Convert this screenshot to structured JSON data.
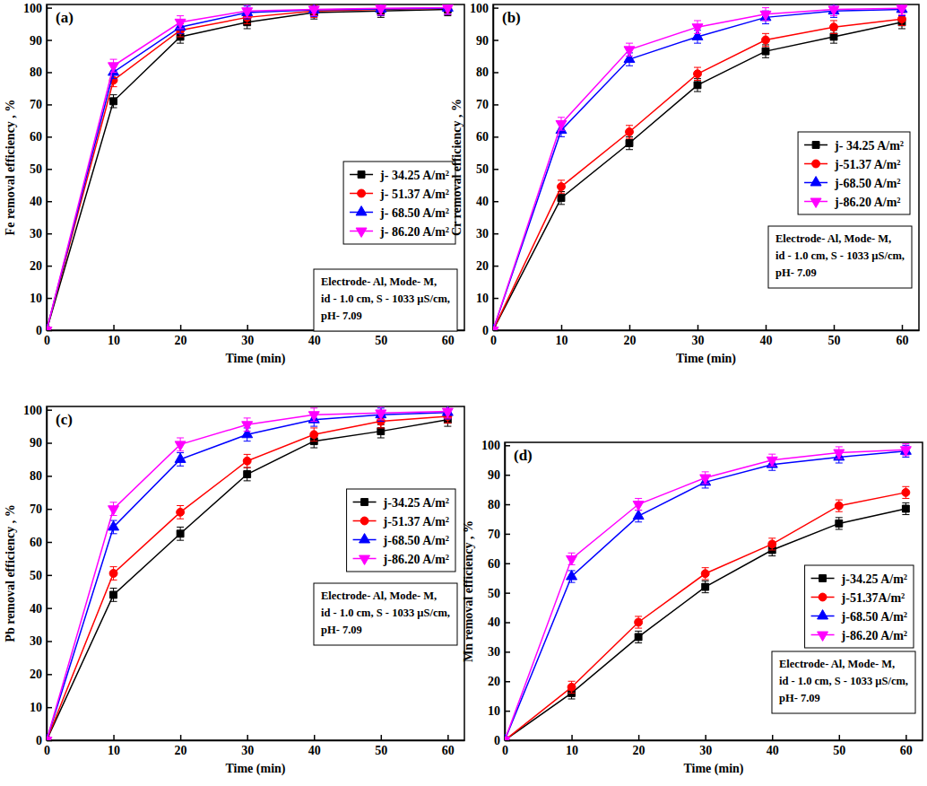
{
  "chart_data": [
    {
      "type": "line",
      "title": "(a)",
      "x_label": "Time (min)",
      "y_label": "Fe removal efficiency , %",
      "x": [
        0,
        10,
        20,
        30,
        40,
        50,
        60
      ],
      "xlim": [
        0,
        62.5
      ],
      "xticks": [
        0,
        10,
        20,
        30,
        40,
        50,
        60
      ],
      "ylim": [
        0,
        101
      ],
      "yticks": [
        0,
        10,
        20,
        30,
        40,
        50,
        60,
        70,
        80,
        90,
        100
      ],
      "legend": "right",
      "annotations": [
        "Electrode- Al,  Mode- M,",
        "id - 1.0 cm, S - 1033 µS/cm,",
        "pH- 7.09"
      ],
      "series": [
        {
          "name": "j- 34.25 A/m²",
          "color": "#000000",
          "marker": "square",
          "values": [
            0,
            71,
            91,
            95.5,
            98.5,
            99,
            99.5
          ],
          "errors": [
            0,
            2,
            2,
            2,
            2,
            2,
            2
          ]
        },
        {
          "name": "j- 51.37 A/m²",
          "color": "#ff0000",
          "marker": "circle",
          "values": [
            0,
            77.5,
            93,
            97,
            99,
            99.5,
            99.8
          ],
          "errors": [
            0,
            2,
            2,
            2,
            2,
            2,
            2
          ]
        },
        {
          "name": "j- 68.50 A/m²",
          "color": "#0000ff",
          "marker": "triangle-up",
          "values": [
            0,
            80,
            94,
            98.5,
            99.3,
            99.6,
            99.9
          ],
          "errors": [
            0,
            2,
            2,
            2,
            2,
            2,
            2
          ]
        },
        {
          "name": "j- 86.20 A/m²",
          "color": "#ff00ff",
          "marker": "triangle-down",
          "values": [
            0,
            82,
            95.5,
            99,
            99.5,
            99.8,
            100
          ],
          "errors": [
            0,
            2,
            2,
            2,
            2,
            2,
            2
          ]
        }
      ]
    },
    {
      "type": "line",
      "title": "(b)",
      "x_label": "Time (min)",
      "y_label": "Cr removal efficiency , %",
      "x": [
        0,
        10,
        20,
        30,
        40,
        50,
        60
      ],
      "xlim": [
        0,
        62.5
      ],
      "xticks": [
        0,
        10,
        20,
        30,
        40,
        50,
        60
      ],
      "ylim": [
        0,
        101
      ],
      "yticks": [
        0,
        10,
        20,
        30,
        40,
        50,
        60,
        70,
        80,
        90,
        100
      ],
      "legend": "right",
      "annotations": [
        "Electrode- Al,  Mode- M,",
        "id - 1.0 cm, S - 1033 µS/cm,",
        "pH- 7.09"
      ],
      "series": [
        {
          "name": "j- 34.25 A/m²",
          "color": "#000000",
          "marker": "square",
          "values": [
            0,
            41,
            58,
            76,
            86.5,
            91,
            95.5
          ],
          "errors": [
            0,
            2,
            2,
            2,
            2,
            2,
            2
          ]
        },
        {
          "name": "j-51.37 A/m²",
          "color": "#ff0000",
          "marker": "circle",
          "values": [
            0,
            44.5,
            61.5,
            79.5,
            90,
            94,
            96.5
          ],
          "errors": [
            0,
            2,
            2,
            2,
            2,
            2,
            2
          ]
        },
        {
          "name": "j-68.50 A/m²",
          "color": "#0000ff",
          "marker": "triangle-up",
          "values": [
            0,
            62,
            84,
            91,
            97,
            99,
            99.5
          ],
          "errors": [
            0,
            2,
            2,
            2,
            2,
            2,
            2
          ]
        },
        {
          "name": "j-86.20 A/m²",
          "color": "#ff00ff",
          "marker": "triangle-down",
          "values": [
            0,
            64,
            87,
            94,
            98,
            99.5,
            99.8
          ],
          "errors": [
            0,
            2,
            2,
            2,
            2,
            2,
            2
          ]
        }
      ]
    },
    {
      "type": "line",
      "title": "(c)",
      "x_label": "Time (min)",
      "y_label": "Pb removal efficiency , %",
      "x": [
        0,
        10,
        20,
        30,
        40,
        50,
        60
      ],
      "xlim": [
        0,
        62.5
      ],
      "xticks": [
        0,
        10,
        20,
        30,
        40,
        50,
        60
      ],
      "ylim": [
        0,
        101
      ],
      "yticks": [
        0,
        10,
        20,
        30,
        40,
        50,
        60,
        70,
        80,
        90,
        100
      ],
      "legend": "right",
      "annotations": [
        "Electrode- Al,  Mode- M,",
        "id - 1.0 cm, S - 1033 µS/cm,",
        "pH- 7.09"
      ],
      "series": [
        {
          "name": "j-34.25 A/m²",
          "color": "#000000",
          "marker": "square",
          "values": [
            0,
            44,
            62.5,
            80.5,
            90.5,
            93.5,
            97
          ],
          "errors": [
            0,
            2,
            2,
            2,
            2,
            2,
            2
          ]
        },
        {
          "name": "j-51.37 A/m²",
          "color": "#ff0000",
          "marker": "circle",
          "values": [
            0,
            50.5,
            69,
            84.5,
            92.5,
            96.5,
            98
          ],
          "errors": [
            0,
            2,
            2,
            2,
            2,
            2,
            2
          ]
        },
        {
          "name": "j-68.50 A/m²",
          "color": "#0000ff",
          "marker": "triangle-up",
          "values": [
            0,
            64.5,
            85,
            92.5,
            97,
            98.5,
            99.2
          ],
          "errors": [
            0,
            2,
            2,
            2,
            2,
            2,
            2
          ]
        },
        {
          "name": "j-86.20 A/m²",
          "color": "#ff00ff",
          "marker": "triangle-down",
          "values": [
            0,
            70,
            89.5,
            95.5,
            98.5,
            99,
            99.5
          ],
          "errors": [
            0,
            2,
            2,
            2,
            2,
            2,
            2
          ]
        }
      ]
    },
    {
      "type": "line",
      "title": "(d)",
      "x_label": "Time (min)",
      "y_label": "Mn removal efficiency , %",
      "x": [
        0,
        10,
        20,
        30,
        40,
        50,
        60
      ],
      "xlim": [
        0,
        62.5
      ],
      "xticks": [
        0,
        10,
        20,
        30,
        40,
        50,
        60
      ],
      "ylim": [
        0,
        101
      ],
      "yticks": [
        0,
        10,
        20,
        30,
        40,
        50,
        60,
        70,
        80,
        90,
        100
      ],
      "legend": "right",
      "annotations": [
        "Electrode- Al,  Mode- M,",
        "id - 1.0 cm, S - 1033 µS/cm,",
        "pH- 7.09"
      ],
      "series": [
        {
          "name": "j-34.25 A/m²",
          "color": "#000000",
          "marker": "square",
          "values": [
            0,
            16,
            35,
            52,
            64.5,
            73.5,
            78.5
          ],
          "errors": [
            0,
            2,
            2,
            2,
            2,
            2,
            2
          ]
        },
        {
          "name": "j-51.37A/m²",
          "color": "#ff0000",
          "marker": "circle",
          "values": [
            0,
            18,
            40,
            56.5,
            66.5,
            79.5,
            84
          ],
          "errors": [
            0,
            2,
            2,
            2,
            2,
            2,
            2
          ]
        },
        {
          "name": "j-68.50 A/m²",
          "color": "#0000ff",
          "marker": "triangle-up",
          "values": [
            0,
            55.5,
            76,
            87.5,
            93.5,
            96,
            98
          ],
          "errors": [
            0,
            2,
            2,
            2,
            2,
            2,
            2
          ]
        },
        {
          "name": "j-86.20 A/m²",
          "color": "#ff00ff",
          "marker": "triangle-down",
          "values": [
            0,
            61.5,
            80,
            89,
            95,
            97.5,
            98.5
          ],
          "errors": [
            0,
            2,
            2,
            2,
            2,
            2,
            2
          ]
        }
      ]
    }
  ]
}
